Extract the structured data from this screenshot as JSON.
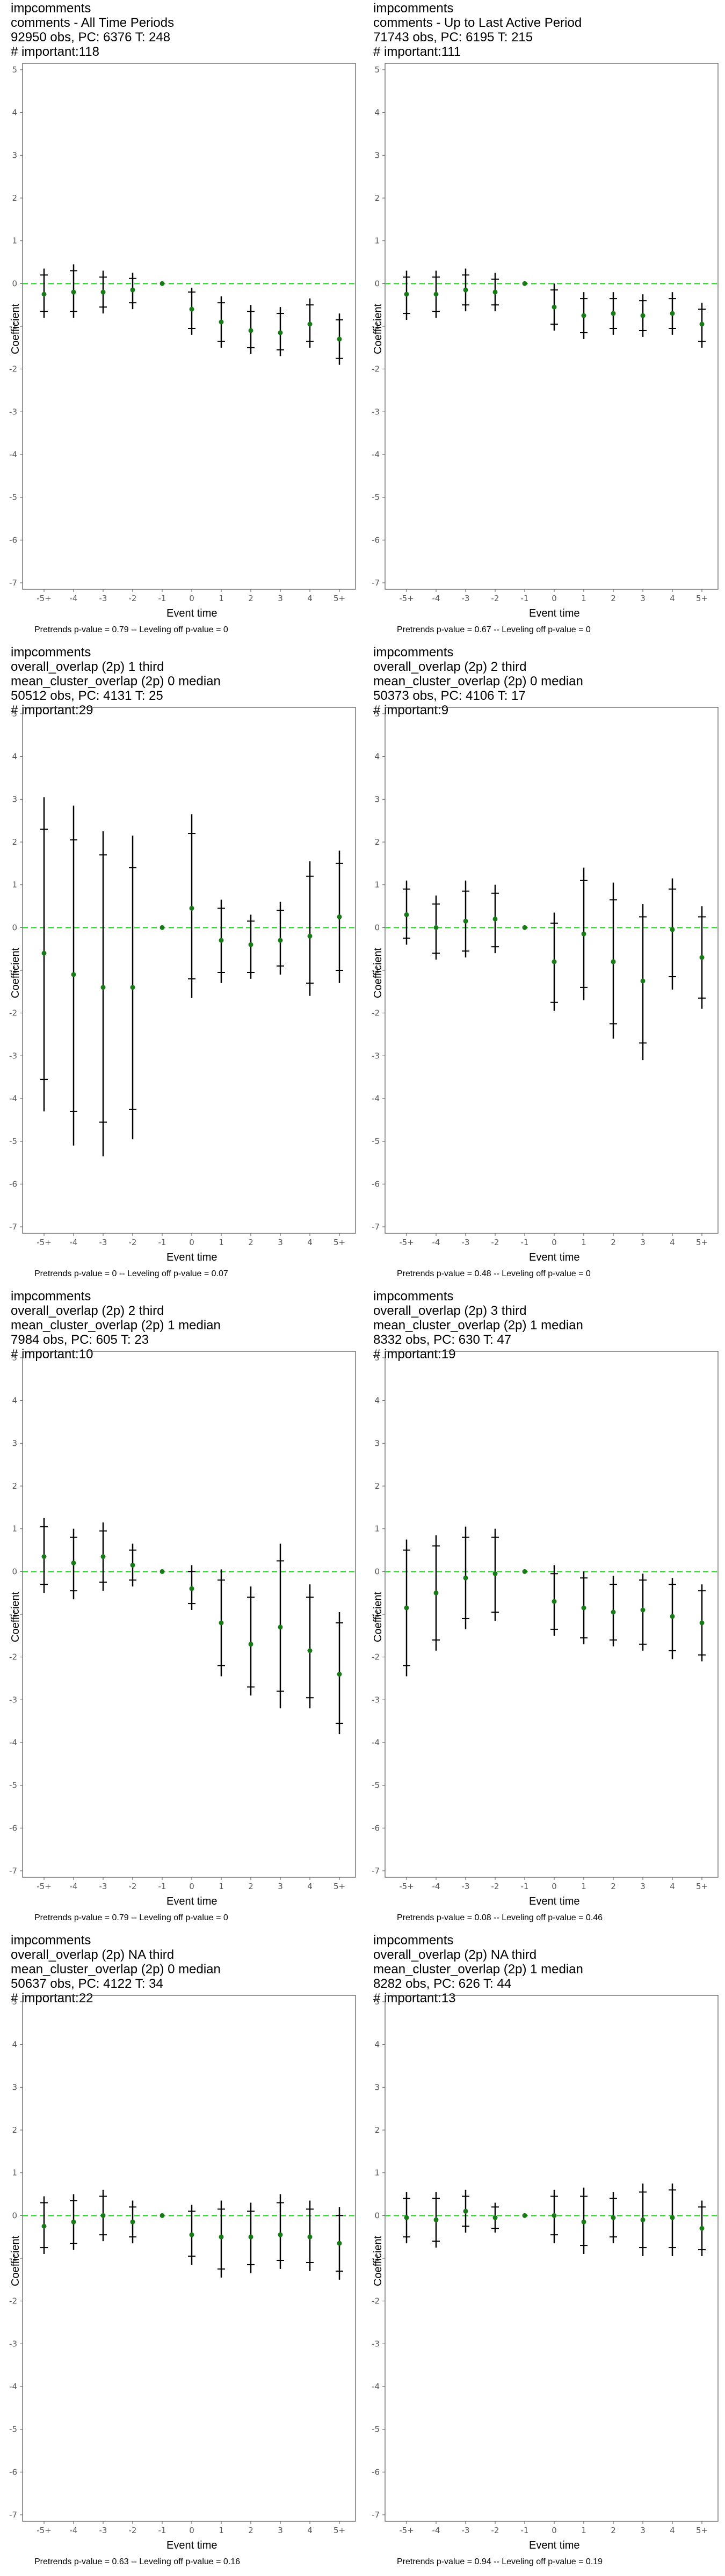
{
  "colors": {
    "zero_line": "#33dd33",
    "point": "#1a7a1a",
    "bar": "#000000",
    "frame": "#555555"
  },
  "axis": {
    "xlabel": "Event time",
    "ylabel": "Coefficient",
    "ylim": [
      -7,
      5
    ]
  },
  "panels": [
    {
      "title": [
        "impcomments",
        "comments - All Time Periods",
        "92950 obs, PC: 6376 T: 248",
        "# important:118"
      ],
      "pvalues": "Pretrends p-value = 0.79 -- Leveling off p-value = 0"
    },
    {
      "title": [
        "impcomments",
        "comments - Up to Last Active Period",
        "71743 obs, PC: 6195 T: 215",
        "# important:111"
      ],
      "pvalues": "Pretrends p-value = 0.67 -- Leveling off p-value = 0"
    },
    {
      "title": [
        "impcomments",
        "overall_overlap (2p) 1 third",
        "mean_cluster_overlap (2p) 0 median",
        "50512 obs, PC: 4131 T: 25",
        "# important:29"
      ],
      "pvalues": "Pretrends p-value = 0 -- Leveling off p-value = 0.07"
    },
    {
      "title": [
        "impcomments",
        "overall_overlap (2p) 2 third",
        "mean_cluster_overlap (2p) 0 median",
        "50373 obs, PC: 4106 T: 17",
        "# important:9"
      ],
      "pvalues": "Pretrends p-value = 0.48 -- Leveling off p-value = 0"
    },
    {
      "title": [
        "impcomments",
        "overall_overlap (2p) 2 third",
        "mean_cluster_overlap (2p) 1 median",
        "7984 obs, PC: 605 T: 23",
        "# important:10"
      ],
      "pvalues": "Pretrends p-value = 0.79 -- Leveling off p-value = 0"
    },
    {
      "title": [
        "impcomments",
        "overall_overlap (2p) 3 third",
        "mean_cluster_overlap (2p) 1 median",
        "8332 obs, PC: 630 T: 47",
        "# important:19"
      ],
      "pvalues": "Pretrends p-value = 0.08 -- Leveling off p-value = 0.46"
    },
    {
      "title": [
        "impcomments",
        "overall_overlap (2p) NA third",
        "mean_cluster_overlap (2p) 0 median",
        "50637 obs, PC: 4122 T: 34",
        "# important:22"
      ],
      "pvalues": "Pretrends p-value = 0.63 -- Leveling off p-value = 0.16"
    },
    {
      "title": [
        "impcomments",
        "overall_overlap (2p) NA third",
        "mean_cluster_overlap (2p) 1 median",
        "8282 obs, PC: 626 T: 44",
        "# important:13"
      ],
      "pvalues": "Pretrends p-value = 0.94 -- Leveling off p-value = 0.19"
    }
  ],
  "chart_data": [
    {
      "type": "scatter",
      "x": [
        "-5+",
        "-4",
        "-3",
        "-2",
        "-1",
        "0",
        "1",
        "2",
        "3",
        "4",
        "5+"
      ],
      "ylim": [
        -7,
        5
      ],
      "yticks": [
        5,
        4,
        3,
        2,
        1,
        0,
        -1,
        -2,
        -3,
        -4,
        -5,
        -6,
        -7
      ],
      "series": [
        {
          "values": [
            -0.25,
            -0.2,
            -0.2,
            -0.15,
            0,
            -0.6,
            -0.9,
            -1.1,
            -1.15,
            -0.95,
            -1.3
          ]
        }
      ],
      "ci_outer": [
        [
          -0.8,
          0.35
        ],
        [
          -0.8,
          0.45
        ],
        [
          -0.7,
          0.3
        ],
        [
          -0.6,
          0.25
        ],
        [
          0,
          0
        ],
        [
          -1.2,
          -0.1
        ],
        [
          -1.5,
          -0.3
        ],
        [
          -1.65,
          -0.5
        ],
        [
          -1.7,
          -0.55
        ],
        [
          -1.5,
          -0.35
        ],
        [
          -1.9,
          -0.7
        ]
      ],
      "ci_inner": [
        [
          -0.65,
          0.2
        ],
        [
          -0.65,
          0.3
        ],
        [
          -0.55,
          0.15
        ],
        [
          -0.45,
          0.12
        ],
        [
          0,
          0
        ],
        [
          -1.05,
          -0.2
        ],
        [
          -1.35,
          -0.45
        ],
        [
          -1.5,
          -0.65
        ],
        [
          -1.55,
          -0.7
        ],
        [
          -1.35,
          -0.5
        ],
        [
          -1.75,
          -0.85
        ]
      ]
    },
    {
      "type": "scatter",
      "x": [
        "-5+",
        "-4",
        "-3",
        "-2",
        "-1",
        "0",
        "1",
        "2",
        "3",
        "4",
        "5+"
      ],
      "ylim": [
        -7,
        5
      ],
      "yticks": [
        5,
        4,
        3,
        2,
        1,
        0,
        -1,
        -2,
        -3,
        -4,
        -5,
        -6,
        -7
      ],
      "series": [
        {
          "values": [
            -0.25,
            -0.25,
            -0.15,
            -0.2,
            0,
            -0.55,
            -0.75,
            -0.7,
            -0.75,
            -0.7,
            -0.95
          ]
        }
      ],
      "ci_outer": [
        [
          -0.85,
          0.3
        ],
        [
          -0.8,
          0.3
        ],
        [
          -0.65,
          0.35
        ],
        [
          -0.65,
          0.25
        ],
        [
          0,
          0
        ],
        [
          -1.1,
          0.0
        ],
        [
          -1.3,
          -0.2
        ],
        [
          -1.2,
          -0.2
        ],
        [
          -1.25,
          -0.25
        ],
        [
          -1.2,
          -0.2
        ],
        [
          -1.5,
          -0.45
        ]
      ],
      "ci_inner": [
        [
          -0.7,
          0.15
        ],
        [
          -0.65,
          0.15
        ],
        [
          -0.5,
          0.2
        ],
        [
          -0.5,
          0.1
        ],
        [
          0,
          0
        ],
        [
          -0.95,
          -0.15
        ],
        [
          -1.15,
          -0.35
        ],
        [
          -1.05,
          -0.35
        ],
        [
          -1.1,
          -0.4
        ],
        [
          -1.05,
          -0.35
        ],
        [
          -1.35,
          -0.6
        ]
      ]
    },
    {
      "type": "scatter",
      "x": [
        "-5+",
        "-4",
        "-3",
        "-2",
        "-1",
        "0",
        "1",
        "2",
        "3",
        "4",
        "5+"
      ],
      "ylim": [
        -7,
        5
      ],
      "yticks": [
        5,
        4,
        3,
        2,
        1,
        0,
        -1,
        -2,
        -3,
        -4,
        -5,
        -6,
        -7
      ],
      "series": [
        {
          "values": [
            -0.6,
            -1.1,
            -1.4,
            -1.4,
            0,
            0.45,
            -0.3,
            -0.4,
            -0.3,
            -0.2,
            0.25
          ]
        }
      ],
      "ci_outer": [
        [
          -4.3,
          3.05
        ],
        [
          -5.1,
          2.85
        ],
        [
          -5.35,
          2.25
        ],
        [
          -4.95,
          2.15
        ],
        [
          0,
          0
        ],
        [
          -1.65,
          2.65
        ],
        [
          -1.3,
          0.65
        ],
        [
          -1.2,
          0.3
        ],
        [
          -1.1,
          0.6
        ],
        [
          -1.6,
          1.55
        ],
        [
          -1.3,
          1.8
        ]
      ],
      "ci_inner": [
        [
          -3.55,
          2.3
        ],
        [
          -4.3,
          2.05
        ],
        [
          -4.55,
          1.7
        ],
        [
          -4.25,
          1.4
        ],
        [
          0,
          0
        ],
        [
          -1.2,
          2.2
        ],
        [
          -1.05,
          0.45
        ],
        [
          -1.05,
          0.15
        ],
        [
          -0.9,
          0.4
        ],
        [
          -1.3,
          1.2
        ],
        [
          -1.0,
          1.5
        ]
      ]
    },
    {
      "type": "scatter",
      "x": [
        "-5+",
        "-4",
        "-3",
        "-2",
        "-1",
        "0",
        "1",
        "2",
        "3",
        "4",
        "5+"
      ],
      "ylim": [
        -7,
        5
      ],
      "yticks": [
        5,
        4,
        3,
        2,
        1,
        0,
        -1,
        -2,
        -3,
        -4,
        -5,
        -6,
        -7
      ],
      "series": [
        {
          "values": [
            0.3,
            0.0,
            0.15,
            0.2,
            0,
            -0.8,
            -0.15,
            -0.8,
            -1.25,
            -0.05,
            -0.7
          ]
        }
      ],
      "ci_outer": [
        [
          -0.4,
          1.1
        ],
        [
          -0.75,
          0.75
        ],
        [
          -0.7,
          1.1
        ],
        [
          -0.6,
          1.0
        ],
        [
          0,
          0
        ],
        [
          -1.95,
          0.35
        ],
        [
          -1.7,
          1.4
        ],
        [
          -2.6,
          1.05
        ],
        [
          -3.1,
          0.55
        ],
        [
          -1.45,
          1.15
        ],
        [
          -1.9,
          0.5
        ]
      ],
      "ci_inner": [
        [
          -0.25,
          0.9
        ],
        [
          -0.6,
          0.55
        ],
        [
          -0.55,
          0.85
        ],
        [
          -0.45,
          0.8
        ],
        [
          0,
          0
        ],
        [
          -1.75,
          0.1
        ],
        [
          -1.4,
          1.1
        ],
        [
          -2.25,
          0.65
        ],
        [
          -2.7,
          0.25
        ],
        [
          -1.15,
          0.9
        ],
        [
          -1.65,
          0.25
        ]
      ]
    },
    {
      "type": "scatter",
      "x": [
        "-5+",
        "-4",
        "-3",
        "-2",
        "-1",
        "0",
        "1",
        "2",
        "3",
        "4",
        "5+"
      ],
      "ylim": [
        -7,
        5
      ],
      "yticks": [
        5,
        4,
        3,
        2,
        1,
        0,
        -1,
        -2,
        -3,
        -4,
        -5,
        -6,
        -7
      ],
      "series": [
        {
          "values": [
            0.35,
            0.2,
            0.35,
            0.15,
            0,
            -0.4,
            -1.2,
            -1.7,
            -1.3,
            -1.85,
            -2.4
          ]
        }
      ],
      "ci_outer": [
        [
          -0.5,
          1.25
        ],
        [
          -0.65,
          1.0
        ],
        [
          -0.45,
          1.15
        ],
        [
          -0.35,
          0.65
        ],
        [
          0,
          0
        ],
        [
          -0.9,
          0.15
        ],
        [
          -2.45,
          0.05
        ],
        [
          -2.9,
          -0.35
        ],
        [
          -3.2,
          0.65
        ],
        [
          -3.2,
          -0.3
        ],
        [
          -3.8,
          -0.95
        ]
      ],
      "ci_inner": [
        [
          -0.3,
          1.05
        ],
        [
          -0.45,
          0.8
        ],
        [
          -0.25,
          0.95
        ],
        [
          -0.2,
          0.5
        ],
        [
          0,
          0
        ],
        [
          -0.75,
          0.0
        ],
        [
          -2.2,
          -0.2
        ],
        [
          -2.7,
          -0.6
        ],
        [
          -2.8,
          0.25
        ],
        [
          -2.95,
          -0.6
        ],
        [
          -3.55,
          -1.2
        ]
      ]
    },
    {
      "type": "scatter",
      "x": [
        "-5+",
        "-4",
        "-3",
        "-2",
        "-1",
        "0",
        "1",
        "2",
        "3",
        "4",
        "5+"
      ],
      "ylim": [
        -7,
        5
      ],
      "yticks": [
        5,
        4,
        3,
        2,
        1,
        0,
        -1,
        -2,
        -3,
        -4,
        -5,
        -6,
        -7
      ],
      "series": [
        {
          "values": [
            -0.85,
            -0.5,
            -0.15,
            -0.05,
            0,
            -0.7,
            -0.85,
            -0.95,
            -0.9,
            -1.05,
            -1.2
          ]
        }
      ],
      "ci_outer": [
        [
          -2.45,
          0.75
        ],
        [
          -1.85,
          0.85
        ],
        [
          -1.35,
          1.05
        ],
        [
          -1.15,
          1.0
        ],
        [
          0,
          0
        ],
        [
          -1.5,
          0.15
        ],
        [
          -1.7,
          0.0
        ],
        [
          -1.75,
          -0.1
        ],
        [
          -1.85,
          -0.05
        ],
        [
          -2.05,
          -0.15
        ],
        [
          -2.1,
          -0.3
        ]
      ],
      "ci_inner": [
        [
          -2.2,
          0.5
        ],
        [
          -1.6,
          0.6
        ],
        [
          -1.1,
          0.8
        ],
        [
          -0.95,
          0.8
        ],
        [
          0,
          0
        ],
        [
          -1.35,
          -0.05
        ],
        [
          -1.55,
          -0.15
        ],
        [
          -1.6,
          -0.3
        ],
        [
          -1.7,
          -0.2
        ],
        [
          -1.85,
          -0.3
        ],
        [
          -1.95,
          -0.45
        ]
      ]
    },
    {
      "type": "scatter",
      "x": [
        "-5+",
        "-4",
        "-3",
        "-2",
        "-1",
        "0",
        "1",
        "2",
        "3",
        "4",
        "5+"
      ],
      "ylim": [
        -7,
        5
      ],
      "yticks": [
        5,
        4,
        3,
        2,
        1,
        0,
        -1,
        -2,
        -3,
        -4,
        -5,
        -6,
        -7
      ],
      "series": [
        {
          "values": [
            -0.25,
            -0.15,
            0.0,
            -0.15,
            0,
            -0.45,
            -0.5,
            -0.5,
            -0.45,
            -0.5,
            -0.65
          ]
        }
      ],
      "ci_outer": [
        [
          -0.9,
          0.45
        ],
        [
          -0.8,
          0.5
        ],
        [
          -0.6,
          0.6
        ],
        [
          -0.65,
          0.35
        ],
        [
          0,
          0
        ],
        [
          -1.15,
          0.25
        ],
        [
          -1.45,
          0.35
        ],
        [
          -1.35,
          0.3
        ],
        [
          -1.25,
          0.5
        ],
        [
          -1.3,
          0.35
        ],
        [
          -1.5,
          0.2
        ]
      ],
      "ci_inner": [
        [
          -0.75,
          0.3
        ],
        [
          -0.65,
          0.35
        ],
        [
          -0.45,
          0.45
        ],
        [
          -0.5,
          0.2
        ],
        [
          0,
          0
        ],
        [
          -0.95,
          0.1
        ],
        [
          -1.25,
          0.15
        ],
        [
          -1.15,
          0.1
        ],
        [
          -1.05,
          0.3
        ],
        [
          -1.1,
          0.15
        ],
        [
          -1.3,
          0.0
        ]
      ]
    },
    {
      "type": "scatter",
      "x": [
        "-5+",
        "-4",
        "-3",
        "-2",
        "-1",
        "0",
        "1",
        "2",
        "3",
        "4",
        "5+"
      ],
      "ylim": [
        -7,
        5
      ],
      "yticks": [
        5,
        4,
        3,
        2,
        1,
        0,
        -1,
        -2,
        -3,
        -4,
        -5,
        -6,
        -7
      ],
      "series": [
        {
          "values": [
            -0.05,
            -0.1,
            0.1,
            -0.05,
            0,
            0.0,
            -0.15,
            -0.05,
            -0.1,
            -0.05,
            -0.3
          ]
        }
      ],
      "ci_outer": [
        [
          -0.65,
          0.55
        ],
        [
          -0.75,
          0.55
        ],
        [
          -0.4,
          0.6
        ],
        [
          -0.4,
          0.3
        ],
        [
          0,
          0
        ],
        [
          -0.65,
          0.6
        ],
        [
          -0.9,
          0.65
        ],
        [
          -0.65,
          0.55
        ],
        [
          -0.95,
          0.75
        ],
        [
          -0.95,
          0.75
        ],
        [
          -0.95,
          0.35
        ]
      ],
      "ci_inner": [
        [
          -0.5,
          0.4
        ],
        [
          -0.6,
          0.4
        ],
        [
          -0.25,
          0.45
        ],
        [
          -0.3,
          0.2
        ],
        [
          0,
          0
        ],
        [
          -0.45,
          0.45
        ],
        [
          -0.7,
          0.45
        ],
        [
          -0.5,
          0.4
        ],
        [
          -0.75,
          0.55
        ],
        [
          -0.75,
          0.6
        ],
        [
          -0.8,
          0.2
        ]
      ]
    }
  ]
}
